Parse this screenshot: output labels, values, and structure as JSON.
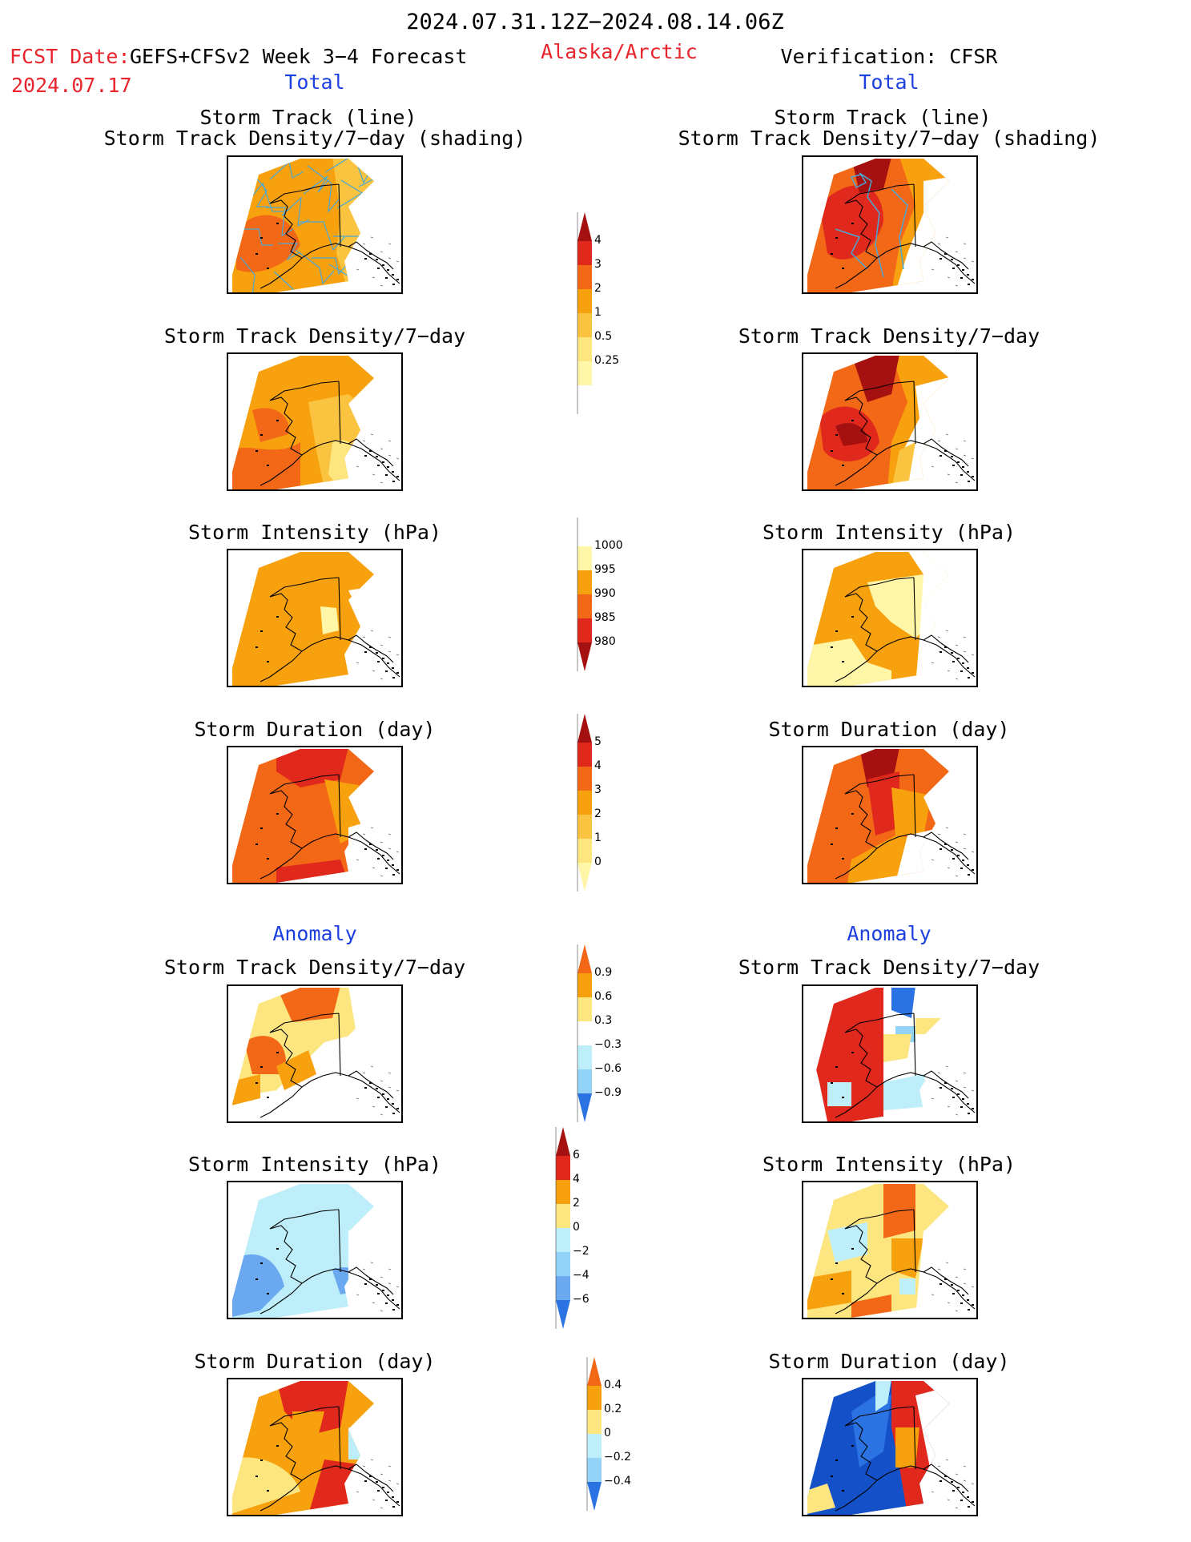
{
  "header": {
    "date_range": "2024.07.31.12Z−2024.08.14.06Z",
    "fcst_date_label": "FCST Date:",
    "fcst_model": "GEFS+CFSv2 Week 3−4 Forecast",
    "fcst_date": "2024.07.17",
    "region": "Alaska/Arctic",
    "verification": "Verification: CFSR",
    "left_section": "Total",
    "right_section": "Total"
  },
  "anomaly_label_left": "Anomaly",
  "anomaly_label_right": "Anomaly",
  "titles": {
    "track_line": "Storm Track (line)",
    "track_shading": "Storm Track Density/7−day (shading)",
    "density": "Storm Track Density/7−day",
    "intensity": "Storm Intensity (hPa)",
    "duration": "Storm Duration (day)"
  },
  "colors": {
    "c_pale": "#fff6a8",
    "c_light": "#fde580",
    "c_yellow_orange": "#fbc440",
    "c_orange": "#f8a10e",
    "c_dark_orange": "#f36816",
    "c_red": "#e0281c",
    "c_dark_red": "#a51010",
    "c_pale_blue": "#bdeefa",
    "c_light_blue": "#92d3f7",
    "c_mid_blue": "#6aa9f0",
    "c_blue": "#2b72e3",
    "c_dark_blue": "#1451c9",
    "track_line": "#4aa8d6"
  },
  "chart_data": [
    {
      "type": "colorbar",
      "name": "density_total",
      "tick_labels": [
        "4",
        "3",
        "2",
        "1",
        "0.5",
        "0.25"
      ],
      "colors": [
        "#a51010",
        "#e0281c",
        "#f36816",
        "#f8a10e",
        "#fbc440",
        "#fde580",
        "#fff6a8",
        "#ffffff"
      ]
    },
    {
      "type": "colorbar",
      "name": "intensity_total",
      "tick_labels": [
        "1000",
        "995",
        "990",
        "985",
        "980"
      ],
      "colors": [
        "#ffffff",
        "#fff6a8",
        "#f8a10e",
        "#f36816",
        "#e0281c",
        "#a51010"
      ]
    },
    {
      "type": "colorbar",
      "name": "duration_total",
      "tick_labels": [
        "5",
        "4",
        "3",
        "2",
        "1",
        "0"
      ],
      "colors": [
        "#a51010",
        "#e0281c",
        "#f36816",
        "#f8a10e",
        "#fbc440",
        "#fde580",
        "#fff6a8"
      ]
    },
    {
      "type": "colorbar",
      "name": "density_anomaly",
      "tick_labels": [
        "0.9",
        "0.6",
        "0.3",
        "−0.3",
        "−0.6",
        "−0.9"
      ],
      "colors": [
        "#f36816",
        "#f8a10e",
        "#fde580",
        "#ffffff",
        "#bdeefa",
        "#92d3f7",
        "#2b72e3"
      ]
    },
    {
      "type": "colorbar",
      "name": "intensity_anomaly",
      "tick_labels": [
        "6",
        "4",
        "2",
        "0",
        "−2",
        "−4",
        "−6"
      ],
      "colors": [
        "#a51010",
        "#e0281c",
        "#f8a10e",
        "#fde580",
        "#bdeefa",
        "#92d3f7",
        "#6aa9f0",
        "#2b72e3"
      ]
    },
    {
      "type": "colorbar",
      "name": "duration_anomaly",
      "tick_labels": [
        "0.4",
        "0.2",
        "0",
        "−0.2",
        "−0.4"
      ],
      "colors": [
        "#f36816",
        "#f8a10e",
        "#fde580",
        "#bdeefa",
        "#92d3f7",
        "#2b72e3"
      ]
    }
  ]
}
